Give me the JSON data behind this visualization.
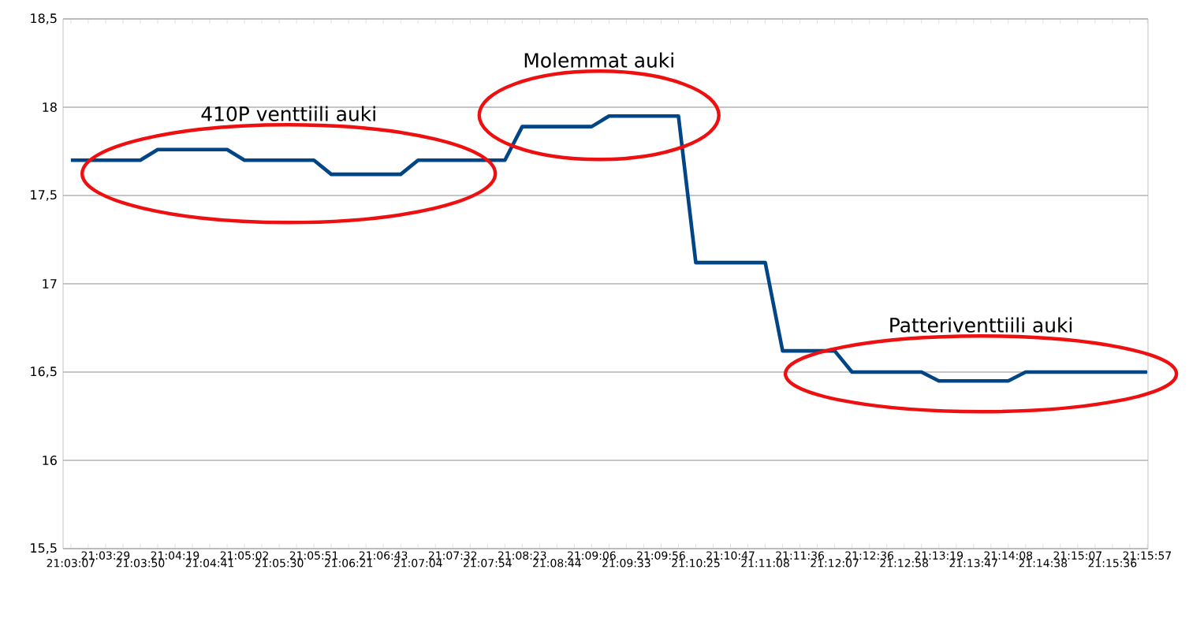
{
  "chart_data": {
    "type": "line",
    "categories": [
      "21:03:07",
      null,
      "21:03:29",
      null,
      "21:03:50",
      null,
      "21:04:19",
      null,
      "21:04:41",
      null,
      "21:05:02",
      null,
      "21:05:30",
      null,
      "21:05:51",
      null,
      "21:06:21",
      null,
      "21:06:43",
      null,
      "21:07:04",
      null,
      "21:07:32",
      null,
      "21:07:54",
      null,
      "21:08:23",
      null,
      "21:08:44",
      null,
      "21:09:06",
      null,
      "21:09:33",
      null,
      "21:09:56",
      null,
      "21:10:25",
      null,
      "21:10:47",
      null,
      "21:11:08",
      null,
      "21:11:36",
      null,
      "21:12:07",
      null,
      "21:12:36",
      null,
      "21:12:58",
      null,
      "21:13:19",
      null,
      "21:13:47",
      null,
      "21:14:08",
      null,
      "21:14:38",
      null,
      "21:15:07",
      null,
      "21:15:36",
      null,
      "21:15:57"
    ],
    "series": [
      {
        "color": "#004586",
        "values": [
          17.7,
          17.7,
          17.7,
          17.7,
          17.7,
          17.76,
          17.76,
          17.76,
          17.76,
          17.76,
          17.7,
          17.7,
          17.7,
          17.7,
          17.7,
          17.62,
          17.62,
          17.62,
          17.62,
          17.62,
          17.7,
          17.7,
          17.7,
          17.7,
          17.7,
          17.7,
          17.89,
          17.89,
          17.89,
          17.89,
          17.89,
          17.95,
          17.95,
          17.95,
          17.95,
          17.95,
          17.12,
          17.12,
          17.12,
          17.12,
          17.12,
          16.62,
          16.62,
          16.62,
          16.62,
          16.5,
          16.5,
          16.5,
          16.5,
          16.5,
          16.45,
          16.45,
          16.45,
          16.45,
          16.45,
          16.5,
          16.5,
          16.5,
          16.5,
          16.5,
          16.5,
          16.5,
          16.5
        ]
      }
    ],
    "ylim": [
      15.5,
      18.5
    ],
    "yticks": [
      {
        "value": 15.5,
        "label": "15,5"
      },
      16,
      {
        "value": 16.5,
        "label": "16,5"
      },
      17,
      {
        "value": 17.5,
        "label": "17,5"
      },
      18,
      {
        "value": 18.5,
        "label": "18,5"
      }
    ],
    "grid": "y",
    "legend": false,
    "marker": "none",
    "line_style": "solid",
    "annotations": [
      "410P venttiili auki",
      "Molemmat auki",
      "Patteriventtiili auki"
    ]
  }
}
